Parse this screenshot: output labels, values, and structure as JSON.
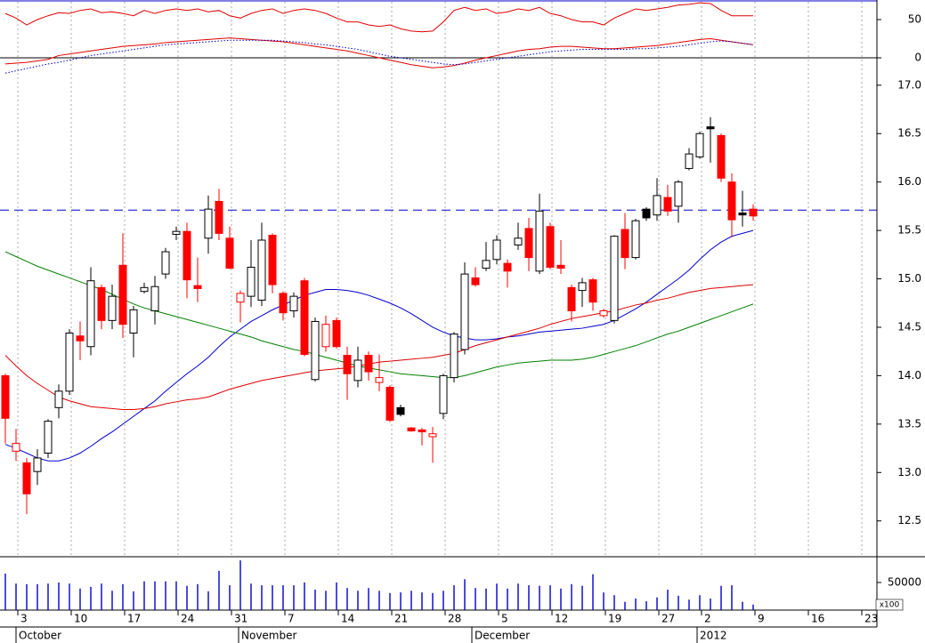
{
  "chart_data": [
    {
      "type": "line",
      "ylim": [
        -24.4,
        75.6
      ],
      "yticks": [
        0,
        50
      ],
      "zero_line": true,
      "series": [
        {
          "color": "#e00000",
          "dash": "solid",
          "values": [
            58,
            52,
            43,
            50,
            55,
            59,
            58,
            62,
            64,
            59,
            60,
            58,
            55,
            62,
            58,
            62,
            64,
            62,
            64,
            60,
            62,
            55,
            52,
            58,
            62,
            64,
            58,
            62,
            64,
            62,
            58,
            52,
            47,
            47,
            43,
            41,
            43,
            38,
            35,
            34,
            35,
            47,
            62,
            66,
            62,
            64,
            58,
            60,
            64,
            62,
            66,
            58,
            55,
            50,
            47,
            47,
            43,
            52,
            58,
            64,
            62,
            64,
            66,
            69,
            70,
            72,
            71,
            62,
            55,
            55,
            55
          ]
        },
        {
          "color": "#e00000",
          "dash": "solid",
          "values": [
            -8,
            -7,
            -6,
            -4,
            -2,
            3,
            5,
            7,
            9,
            11,
            13,
            15,
            16,
            17,
            18,
            20,
            21,
            22,
            23,
            24,
            25,
            26,
            25,
            24,
            23,
            22,
            21,
            19,
            17,
            15,
            13,
            11,
            9,
            6,
            3,
            0,
            -3,
            -6,
            -9,
            -11,
            -13,
            -12,
            -10,
            -7,
            -3,
            0,
            3,
            6,
            9,
            11,
            12,
            14,
            15,
            15,
            14,
            13,
            12,
            12,
            13,
            14,
            15,
            16,
            18,
            20,
            22,
            24,
            25,
            23,
            21,
            19,
            17
          ]
        },
        {
          "color": "#0000cc",
          "dash": "dotted",
          "values": [
            -20,
            -17,
            -14,
            -11,
            -8,
            -6,
            -3,
            0,
            3,
            5,
            7,
            9,
            11,
            13,
            15,
            17,
            18,
            19,
            20,
            21,
            22,
            23,
            23,
            23,
            23,
            23,
            22,
            21,
            20,
            18,
            17,
            15,
            13,
            11,
            8,
            5,
            2,
            0,
            -2,
            -4,
            -6,
            -8,
            -9,
            -8,
            -6,
            -4,
            -2,
            0,
            2,
            4,
            6,
            8,
            9,
            10,
            11,
            11,
            11,
            11,
            11,
            12,
            12,
            13,
            14,
            15,
            17,
            19,
            21,
            22,
            21,
            19,
            17
          ]
        }
      ]
    },
    {
      "type": "candlestick",
      "ylim": [
        12.13,
        17.09
      ],
      "yticks": [
        {
          "value": 12.5,
          "label": "12.5"
        },
        {
          "value": 13,
          "label": "13.0"
        },
        13.5,
        {
          "value": 14,
          "label": "14.0"
        },
        14.5,
        {
          "value": 15,
          "label": "15.0"
        },
        15.5,
        {
          "value": 16,
          "label": "16.0"
        },
        16.5,
        {
          "value": 17,
          "label": "17.0"
        }
      ],
      "colors": {
        "up_from_previous": "#000000",
        "down_from_previous": "#ff0000"
      },
      "open": [
        14.0,
        13.22,
        13.1,
        13.01,
        13.2,
        13.67,
        13.84,
        14.41,
        14.3,
        14.91,
        14.57,
        15.14,
        14.44,
        14.87,
        14.67,
        15.05,
        15.46,
        15.49,
        14.93,
        15.42,
        15.8,
        15.42,
        14.76,
        14.82,
        14.78,
        15.45,
        14.85,
        14.67,
        14.98,
        13.96,
        14.3,
        14.57,
        14.21,
        13.95,
        14.21,
        13.93,
        13.88,
        13.67,
        13.46,
        13.44,
        13.37,
        13.61,
        13.98,
        14.27,
        15.01,
        15.11,
        15.2,
        15.16,
        15.35,
        15.52,
        15.08,
        15.54,
        15.14,
        14.91,
        14.88,
        14.99,
        14.62,
        14.57,
        15.51,
        15.22,
        15.72,
        15.66,
        15.84,
        15.75,
        16.14,
        16.26,
        16.57,
        16.48,
        16.0,
        15.68,
        15.72
      ],
      "high": [
        14.02,
        13.45,
        13.15,
        13.24,
        13.55,
        13.91,
        14.48,
        14.56,
        15.12,
        14.94,
        14.94,
        15.47,
        14.72,
        14.96,
        15.03,
        15.32,
        15.54,
        15.58,
        15.22,
        15.86,
        15.93,
        15.54,
        14.88,
        15.4,
        15.58,
        15.47,
        14.87,
        14.86,
        15.01,
        14.6,
        14.62,
        14.6,
        14.3,
        14.3,
        14.25,
        14.22,
        13.9,
        13.7,
        13.47,
        13.46,
        13.47,
        14.02,
        14.45,
        15.17,
        15.12,
        15.38,
        15.45,
        15.2,
        15.58,
        15.63,
        15.88,
        15.58,
        15.4,
        14.94,
        15.01,
        15.01,
        14.69,
        15.45,
        15.68,
        15.62,
        15.74,
        16.04,
        15.97,
        16.02,
        16.35,
        16.52,
        16.67,
        16.5,
        16.09,
        15.91,
        15.77
      ],
      "low": [
        13.3,
        13.12,
        12.57,
        12.87,
        13.15,
        13.56,
        13.8,
        14.16,
        14.21,
        14.48,
        14.48,
        14.39,
        14.19,
        14.85,
        14.53,
        15.0,
        15.4,
        14.8,
        14.76,
        15.26,
        15.4,
        15.1,
        14.55,
        14.71,
        14.72,
        14.85,
        14.57,
        14.6,
        14.2,
        13.94,
        14.25,
        14.28,
        13.75,
        13.88,
        13.95,
        13.84,
        13.52,
        13.58,
        13.42,
        13.28,
        13.1,
        13.55,
        13.93,
        14.22,
        14.92,
        15.08,
        15.15,
        14.91,
        15.3,
        15.08,
        15.05,
        15.1,
        15.05,
        14.56,
        14.71,
        14.67,
        14.6,
        14.54,
        15.1,
        15.2,
        15.6,
        15.6,
        15.65,
        15.58,
        16.12,
        16.24,
        16.2,
        16.0,
        15.43,
        15.54,
        15.6
      ],
      "close": [
        13.56,
        13.3,
        12.78,
        13.15,
        13.53,
        13.84,
        14.44,
        14.36,
        14.98,
        14.57,
        14.82,
        14.53,
        14.68,
        14.91,
        14.92,
        15.28,
        15.49,
        14.99,
        14.9,
        15.72,
        15.47,
        15.11,
        14.85,
        15.12,
        15.4,
        14.94,
        14.65,
        14.82,
        14.22,
        14.56,
        14.53,
        14.3,
        14.02,
        14.16,
        14.04,
        13.98,
        13.54,
        13.6,
        13.43,
        13.42,
        13.4,
        14.0,
        14.43,
        15.05,
        14.94,
        15.19,
        15.4,
        15.08,
        15.42,
        15.22,
        15.7,
        15.12,
        15.11,
        14.67,
        14.96,
        14.76,
        14.67,
        15.44,
        15.22,
        15.6,
        15.63,
        15.86,
        15.7,
        16.0,
        16.29,
        16.5,
        16.55,
        16.04,
        15.61,
        15.66,
        15.65
      ],
      "lines": [
        {
          "color": "#0000cc",
          "values": [
            13.29,
            13.25,
            13.2,
            13.15,
            13.12,
            13.12,
            13.15,
            13.2,
            13.27,
            13.35,
            13.42,
            13.5,
            13.58,
            13.66,
            13.74,
            13.84,
            13.93,
            14.02,
            14.1,
            14.19,
            14.3,
            14.4,
            14.48,
            14.56,
            14.62,
            14.68,
            14.73,
            14.78,
            14.83,
            14.86,
            14.89,
            14.89,
            14.88,
            14.86,
            14.83,
            14.79,
            14.75,
            14.7,
            14.64,
            14.57,
            14.5,
            14.45,
            14.41,
            14.39,
            14.37,
            14.37,
            14.38,
            14.4,
            14.41,
            14.43,
            14.45,
            14.46,
            14.47,
            14.48,
            14.49,
            14.51,
            14.53,
            14.57,
            14.63,
            14.69,
            14.76,
            14.84,
            14.92,
            15.0,
            15.09,
            15.2,
            15.3,
            15.38,
            15.44,
            15.47,
            15.5
          ]
        },
        {
          "color": "#dd0000",
          "values": [
            14.21,
            14.1,
            14.0,
            13.92,
            13.85,
            13.78,
            13.74,
            13.71,
            13.68,
            13.67,
            13.66,
            13.65,
            13.65,
            13.66,
            13.68,
            13.71,
            13.73,
            13.75,
            13.76,
            13.78,
            13.82,
            13.86,
            13.89,
            13.92,
            13.95,
            13.97,
            13.99,
            14.01,
            14.03,
            14.05,
            14.06,
            14.07,
            14.08,
            14.1,
            14.12,
            14.14,
            14.15,
            14.16,
            14.17,
            14.18,
            14.19,
            14.21,
            14.23,
            14.27,
            14.31,
            14.34,
            14.37,
            14.4,
            14.43,
            14.46,
            14.49,
            14.53,
            14.56,
            14.59,
            14.61,
            14.63,
            14.65,
            14.67,
            14.7,
            14.73,
            14.75,
            14.78,
            14.8,
            14.83,
            14.86,
            14.88,
            14.9,
            14.91,
            14.92,
            14.93,
            14.94
          ]
        },
        {
          "color": "#008000",
          "values": [
            15.28,
            15.23,
            15.18,
            15.13,
            15.09,
            15.05,
            15.01,
            14.97,
            14.93,
            14.89,
            14.84,
            14.79,
            14.74,
            14.7,
            14.67,
            14.64,
            14.61,
            14.58,
            14.55,
            14.52,
            14.49,
            14.46,
            14.43,
            14.4,
            14.36,
            14.33,
            14.3,
            14.27,
            14.25,
            14.22,
            14.19,
            14.16,
            14.13,
            14.1,
            14.08,
            14.06,
            14.04,
            14.02,
            14.01,
            14.0,
            13.99,
            13.98,
            13.98,
            14.0,
            14.03,
            14.06,
            14.09,
            14.11,
            14.13,
            14.14,
            14.15,
            14.16,
            14.16,
            14.16,
            14.17,
            14.19,
            14.22,
            14.25,
            14.28,
            14.31,
            14.35,
            14.39,
            14.43,
            14.46,
            14.5,
            14.54,
            14.58,
            14.62,
            14.66,
            14.7,
            14.74
          ]
        }
      ],
      "hline": {
        "value": 15.71,
        "color": "#0000cc"
      }
    },
    {
      "type": "bar",
      "color": "#0000cc",
      "ylim": [
        0,
        95000
      ],
      "yticks": [
        50000
      ],
      "unit_label": "x100",
      "categories": [
        null,
        "3",
        null,
        null,
        null,
        null,
        "10",
        null,
        null,
        null,
        null,
        "17",
        null,
        null,
        null,
        null,
        "24",
        null,
        null,
        null,
        null,
        "31",
        null,
        null,
        null,
        null,
        "7",
        null,
        null,
        null,
        null,
        "14",
        null,
        null,
        null,
        null,
        "21",
        null,
        null,
        null,
        null,
        "28",
        null,
        null,
        null,
        null,
        "5",
        null,
        null,
        null,
        null,
        "12",
        null,
        null,
        null,
        null,
        "19",
        null,
        null,
        null,
        null,
        "27",
        null,
        null,
        null,
        "2",
        null,
        null,
        null,
        null,
        "9",
        null,
        null,
        null,
        null,
        "16",
        null,
        null,
        null,
        null,
        "23",
        null
      ],
      "month_labels": [
        "October",
        "November",
        "December",
        "2012"
      ],
      "values": [
        66000,
        48000,
        47000,
        47000,
        48000,
        50000,
        48000,
        39000,
        42000,
        48000,
        35000,
        47000,
        34000,
        52000,
        52000,
        52000,
        52000,
        44000,
        47000,
        34000,
        71000,
        45000,
        90000,
        48000,
        45000,
        45000,
        45000,
        45000,
        50000,
        37000,
        35000,
        50000,
        40000,
        35000,
        40000,
        35000,
        31000,
        32000,
        35000,
        32000,
        31000,
        35000,
        45000,
        56000,
        40000,
        39000,
        48000,
        39000,
        48000,
        45000,
        44000,
        45000,
        39000,
        47000,
        44000,
        65000,
        32000,
        27000,
        15000,
        21000,
        16000,
        23000,
        37000,
        26000,
        19000,
        27000,
        21000,
        44000,
        45000,
        15000,
        10000,
        null,
        null,
        null,
        null,
        null,
        null,
        null,
        null,
        null,
        null,
        null
      ]
    }
  ]
}
